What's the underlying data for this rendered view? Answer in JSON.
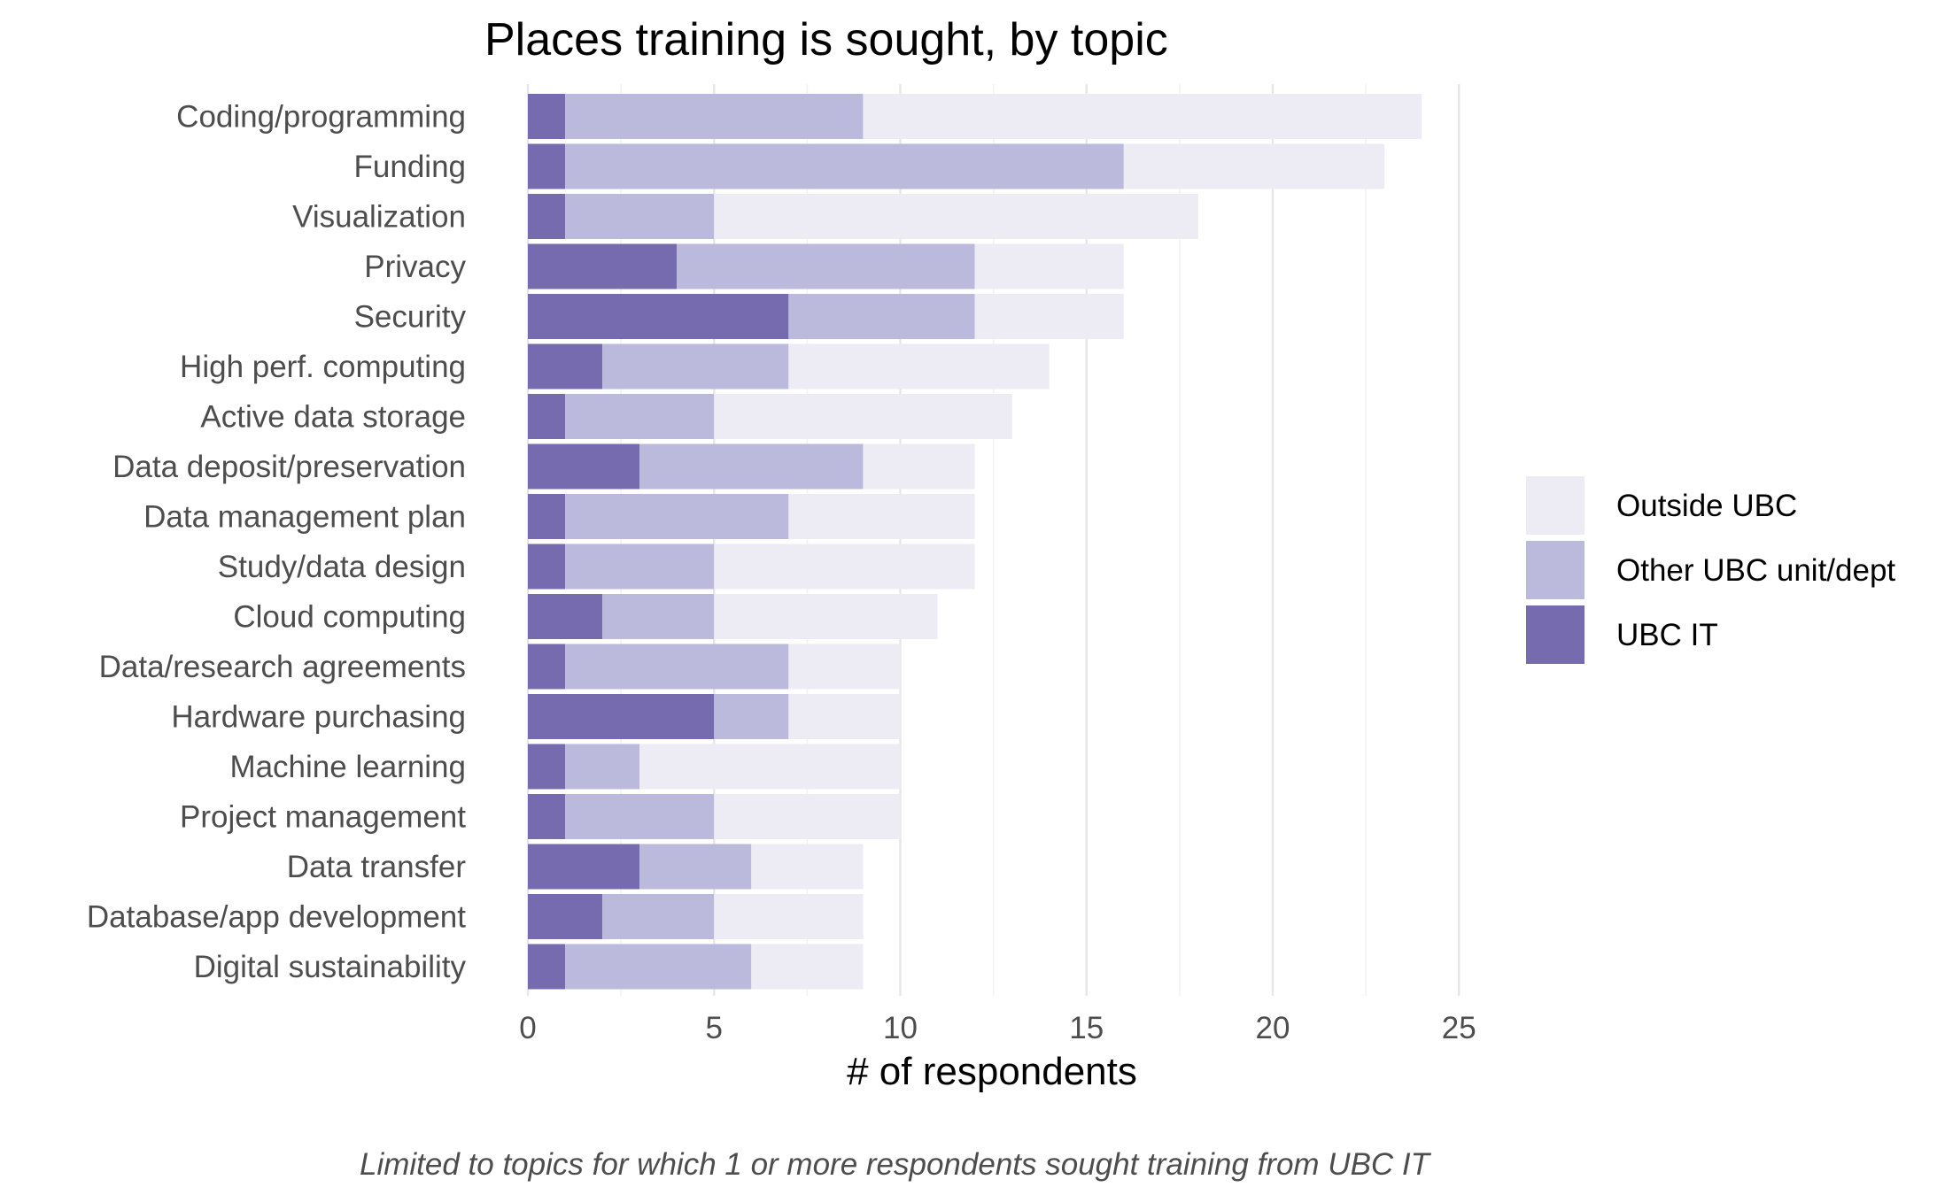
{
  "chart_data": {
    "type": "bar",
    "orientation": "horizontal",
    "stacked": true,
    "title": "Places training is sought, by topic",
    "xlabel": "# of respondents",
    "ylabel": "",
    "caption": "Limited to topics for which 1 or more respondents sought training from UBC IT",
    "xlim": [
      0,
      25
    ],
    "xticks": [
      0,
      5,
      10,
      15,
      20,
      25
    ],
    "grid": true,
    "legend_position": "right",
    "categories": [
      "Coding/programming",
      "Funding",
      "Visualization",
      "Privacy",
      "Security",
      "High perf. computing",
      "Active data storage",
      "Data deposit/preservation",
      "Data management plan",
      "Study/data design",
      "Cloud computing",
      "Data/research agreements",
      "Hardware purchasing",
      "Machine learning",
      "Project management",
      "Data transfer",
      "Database/app development",
      "Digital sustainability"
    ],
    "series": [
      {
        "name": "UBC IT",
        "color": "#776bb0",
        "values": [
          1,
          1,
          1,
          4,
          7,
          2,
          1,
          3,
          1,
          1,
          2,
          1,
          5,
          1,
          1,
          3,
          2,
          1
        ]
      },
      {
        "name": "Other UBC unit/dept",
        "color": "#bbb9dc",
        "values": [
          8,
          15,
          4,
          8,
          5,
          5,
          4,
          6,
          6,
          4,
          3,
          6,
          2,
          2,
          4,
          3,
          3,
          5
        ]
      },
      {
        "name": "Outside UBC",
        "color": "#edecf5",
        "values": [
          15,
          7,
          13,
          4,
          4,
          7,
          8,
          3,
          5,
          7,
          6,
          3,
          3,
          7,
          5,
          3,
          4,
          3
        ]
      }
    ],
    "legend_order": [
      "Outside UBC",
      "Other UBC unit/dept",
      "UBC IT"
    ]
  }
}
